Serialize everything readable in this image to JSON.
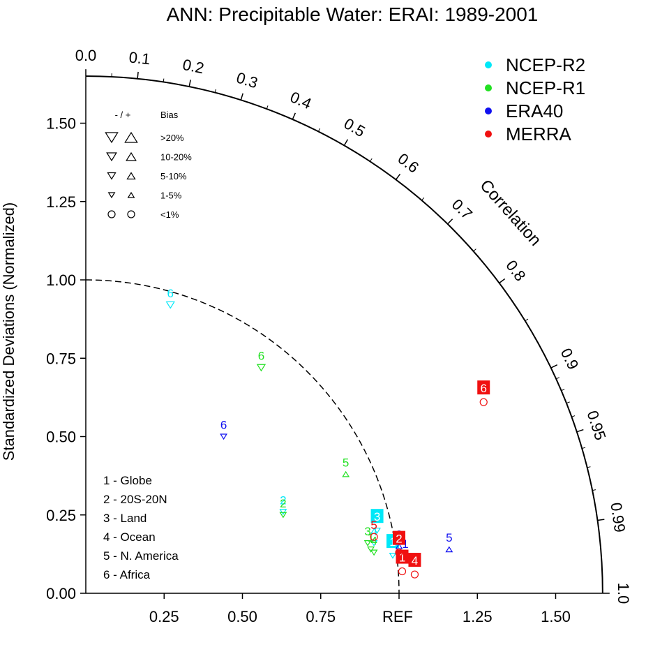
{
  "chart_data": {
    "type": "scatter",
    "diagram": "taylor",
    "title": "ANN: Precipitable Water: ERAI: 1989-2001",
    "ylabel": "Standardized Deviations (Normalized)",
    "arc_label": "Correlation",
    "ref_label": "REF",
    "std_range": [
      0,
      1.65
    ],
    "std_ticks": [
      {
        "v": 0.25,
        "label": "0.25"
      },
      {
        "v": 0.5,
        "label": "0.50"
      },
      {
        "v": 0.75,
        "label": "0.75"
      },
      {
        "v": 1.25,
        "label": "1.25"
      },
      {
        "v": 1.5,
        "label": "1.50"
      }
    ],
    "y_ticks": [
      {
        "v": 0,
        "label": "0.00"
      },
      {
        "v": 0.25,
        "label": "0.25"
      },
      {
        "v": 0.5,
        "label": "0.50"
      },
      {
        "v": 0.75,
        "label": "0.75"
      },
      {
        "v": 1.0,
        "label": "1.00"
      },
      {
        "v": 1.25,
        "label": "1.25"
      },
      {
        "v": 1.5,
        "label": "1.50"
      }
    ],
    "corr_ticks": [
      {
        "v": 0.0,
        "label": "0.0"
      },
      {
        "v": 0.1,
        "label": "0.1"
      },
      {
        "v": 0.2,
        "label": "0.2"
      },
      {
        "v": 0.3,
        "label": "0.3"
      },
      {
        "v": 0.4,
        "label": "0.4"
      },
      {
        "v": 0.5,
        "label": "0.5"
      },
      {
        "v": 0.6,
        "label": "0.6"
      },
      {
        "v": 0.7,
        "label": "0.7"
      },
      {
        "v": 0.8,
        "label": "0.8"
      },
      {
        "v": 0.9,
        "label": "0.9"
      },
      {
        "v": 0.95,
        "label": "0.95"
      },
      {
        "v": 0.99,
        "label": "0.99"
      },
      {
        "v": 1.0,
        "label": "1.0"
      }
    ],
    "ref_std": 1.0,
    "legend": [
      {
        "name": "NCEP-R2",
        "color": "#00e8f8"
      },
      {
        "name": "NCEP-R1",
        "color": "#22e022"
      },
      {
        "name": "ERA40",
        "color": "#1010f0"
      },
      {
        "name": "MERRA",
        "color": "#f01010"
      }
    ],
    "bias_legend": {
      "title": "- / +",
      "header": "Bias",
      "rows": [
        {
          "label": ">20%",
          "size": "xl"
        },
        {
          "label": "10-20%",
          "size": "l"
        },
        {
          "label": "5-10%",
          "size": "m"
        },
        {
          "label": "1-5%",
          "size": "s"
        },
        {
          "label": "<1%",
          "size": "circle"
        }
      ]
    },
    "case_legend": [
      "1 - Globe",
      "2 - 20S-20N",
      "3 - Land",
      "4 - Ocean",
      "5 - N. America",
      "6 - Africa"
    ],
    "series": [
      {
        "name": "NCEP-R2",
        "color": "#00e8f8",
        "points": [
          {
            "case": "1",
            "x": 0.98,
            "y": 0.12,
            "marker": "dn-s",
            "boxed": true
          },
          {
            "case": "2",
            "x": 0.63,
            "y": 0.26,
            "marker": "dn-s",
            "boxed": false
          },
          {
            "case": "3",
            "x": 0.93,
            "y": 0.2,
            "marker": "dn-s",
            "boxed": true
          },
          {
            "case": "4",
            "x": 0.92,
            "y": 0.16,
            "marker": "dn-s",
            "boxed": false
          },
          {
            "case": "6",
            "x": 0.27,
            "y": 0.92,
            "marker": "dn-m",
            "boxed": false
          }
        ]
      },
      {
        "name": "NCEP-R1",
        "color": "#22e022",
        "points": [
          {
            "case": "1",
            "x": 0.91,
            "y": 0.14,
            "marker": "dn-s",
            "boxed": false
          },
          {
            "case": "2",
            "x": 0.63,
            "y": 0.25,
            "marker": "dn-s",
            "boxed": false
          },
          {
            "case": "3",
            "x": 0.9,
            "y": 0.16,
            "marker": "dn-s",
            "boxed": false
          },
          {
            "case": "4",
            "x": 0.92,
            "y": 0.13,
            "marker": "dn-s",
            "boxed": false
          },
          {
            "case": "5",
            "x": 0.83,
            "y": 0.38,
            "marker": "up-s",
            "boxed": false
          },
          {
            "case": "6",
            "x": 0.56,
            "y": 0.72,
            "marker": "dn-m",
            "boxed": false
          }
        ]
      },
      {
        "name": "ERA40",
        "color": "#1010f0",
        "points": [
          {
            "case": "1",
            "x": 1.02,
            "y": 0.12,
            "marker": "up-s",
            "boxed": false
          },
          {
            "case": "2",
            "x": 1.0,
            "y": 0.15,
            "marker": "up-s",
            "boxed": false
          },
          {
            "case": "5",
            "x": 1.16,
            "y": 0.14,
            "marker": "up-s",
            "boxed": false
          },
          {
            "case": "6",
            "x": 0.44,
            "y": 0.5,
            "marker": "dn-s",
            "boxed": false
          }
        ]
      },
      {
        "name": "MERRA",
        "color": "#f01010",
        "points": [
          {
            "case": "1",
            "x": 1.01,
            "y": 0.07,
            "marker": "circle",
            "boxed": true
          },
          {
            "case": "2",
            "x": 1.0,
            "y": 0.13,
            "marker": "circle",
            "boxed": true
          },
          {
            "case": "4",
            "x": 1.05,
            "y": 0.06,
            "marker": "circle",
            "boxed": true
          },
          {
            "case": "5",
            "x": 0.92,
            "y": 0.18,
            "marker": "circle",
            "boxed": false
          },
          {
            "case": "6",
            "x": 1.27,
            "y": 0.61,
            "marker": "circle",
            "boxed": true
          }
        ]
      }
    ]
  }
}
